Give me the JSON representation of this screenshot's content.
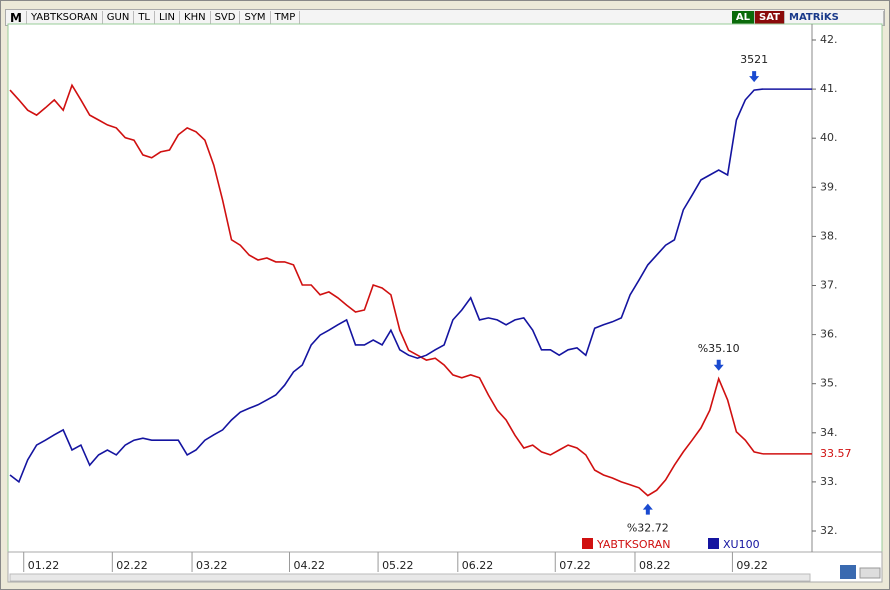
{
  "toolbar": {
    "logo": "M",
    "symbol": "YABTKSORAN",
    "buttons": [
      "GUN",
      "TL",
      "LIN",
      "KHN",
      "SVD",
      "SYM",
      "TMP"
    ],
    "buy": "AL",
    "sell": "SAT",
    "brand": "MATRiKS"
  },
  "chart_data": {
    "type": "line",
    "categories": [
      null,
      null,
      "01.22",
      null,
      null,
      null,
      null,
      null,
      null,
      null,
      null,
      null,
      "02.22",
      null,
      null,
      null,
      null,
      null,
      null,
      null,
      null,
      "03.22",
      null,
      null,
      null,
      null,
      null,
      null,
      null,
      null,
      null,
      null,
      "04.22",
      null,
      null,
      null,
      null,
      null,
      null,
      null,
      null,
      null,
      "05.22",
      null,
      null,
      null,
      null,
      null,
      null,
      null,
      null,
      "06.22",
      null,
      null,
      null,
      null,
      null,
      null,
      null,
      null,
      null,
      null,
      "07.22",
      null,
      null,
      null,
      null,
      null,
      null,
      null,
      null,
      "08.22",
      null,
      null,
      null,
      null,
      null,
      null,
      null,
      null,
      null,
      null,
      "09.22",
      null,
      null,
      null
    ],
    "ylim": [
      32,
      42
    ],
    "yticks": [
      {
        "value": 32,
        "label": "32."
      },
      {
        "value": 33,
        "label": "33."
      },
      {
        "value": 34,
        "label": "34."
      },
      {
        "value": 35,
        "label": "35."
      },
      {
        "value": 36,
        "label": "36."
      },
      {
        "value": 37,
        "label": "37."
      },
      {
        "value": 38,
        "label": "38."
      },
      {
        "value": 39,
        "label": "39."
      },
      {
        "value": 40,
        "label": "40."
      },
      {
        "value": 41,
        "label": "41."
      },
      {
        "value": 42,
        "label": "42."
      }
    ],
    "series": [
      {
        "name": "YABTKSORAN",
        "color": "#d01010",
        "values": [
          40.98,
          40.78,
          40.57,
          40.47,
          40.62,
          40.78,
          40.57,
          41.08,
          40.78,
          40.47,
          40.37,
          40.27,
          40.21,
          40.01,
          39.96,
          39.66,
          39.6,
          39.72,
          39.76,
          40.07,
          40.21,
          40.13,
          39.96,
          39.45,
          38.74,
          37.93,
          37.82,
          37.62,
          37.52,
          37.56,
          37.48,
          37.48,
          37.42,
          37.01,
          37.01,
          36.81,
          36.87,
          36.75,
          36.6,
          36.46,
          36.5,
          37.01,
          36.95,
          36.81,
          36.09,
          35.68,
          35.58,
          35.48,
          35.52,
          35.38,
          35.18,
          35.12,
          35.18,
          35.12,
          34.77,
          34.46,
          34.26,
          33.95,
          33.69,
          33.75,
          33.61,
          33.55,
          33.65,
          33.75,
          33.69,
          33.55,
          33.24,
          33.14,
          33.08,
          33.0,
          32.94,
          32.88,
          32.72,
          32.83,
          33.04,
          33.34,
          33.61,
          33.85,
          34.1,
          34.46,
          35.1,
          34.67,
          34.02,
          33.85,
          33.61,
          33.57
        ],
        "last_label": "33.57",
        "markers": [
          {
            "value": 35.1,
            "label": "%35.10",
            "position": "above"
          },
          {
            "value": 32.72,
            "label": "%32.72",
            "position": "below"
          }
        ]
      },
      {
        "name": "XU100",
        "color": "#1414a0",
        "values": [
          33.14,
          33.0,
          33.45,
          33.75,
          33.85,
          33.96,
          34.06,
          33.65,
          33.75,
          33.34,
          33.55,
          33.65,
          33.55,
          33.75,
          33.85,
          33.89,
          33.85,
          33.85,
          33.85,
          33.85,
          33.55,
          33.65,
          33.85,
          33.96,
          34.06,
          34.26,
          34.42,
          34.5,
          34.57,
          34.67,
          34.77,
          34.97,
          35.24,
          35.38,
          35.79,
          35.99,
          36.09,
          36.2,
          36.3,
          35.79,
          35.79,
          35.89,
          35.79,
          36.09,
          35.69,
          35.58,
          35.52,
          35.58,
          35.69,
          35.79,
          36.3,
          36.5,
          36.75,
          36.3,
          36.34,
          36.3,
          36.2,
          36.3,
          36.34,
          36.09,
          35.69,
          35.69,
          35.58,
          35.69,
          35.73,
          35.58,
          36.13,
          36.2,
          36.26,
          36.34,
          36.81,
          37.11,
          37.42,
          37.62,
          37.82,
          37.93,
          38.54,
          38.84,
          39.15,
          39.25,
          39.35,
          39.25,
          40.37,
          40.78,
          40.98,
          41.0
        ],
        "markers": [
          {
            "value": 40.98,
            "label": "3521",
            "position": "above"
          }
        ]
      }
    ]
  }
}
